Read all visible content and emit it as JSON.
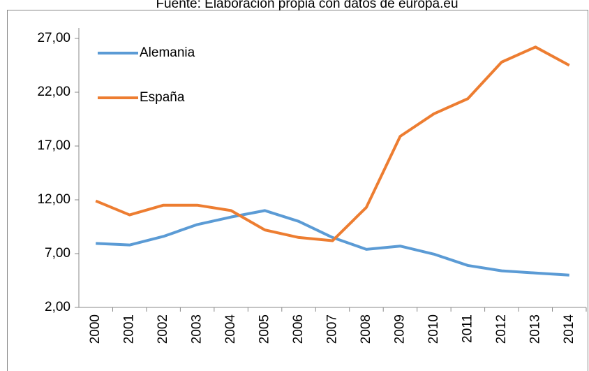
{
  "chart_data": {
    "type": "line",
    "title": "Fuente: Elaboración propia con datos de europa.eu",
    "categories": [
      "2000",
      "2001",
      "2002",
      "2003",
      "2004",
      "2005",
      "2006",
      "2007",
      "2008",
      "2009",
      "2010",
      "2011",
      "2012",
      "2013",
      "2014"
    ],
    "series": [
      {
        "name": "Alemania",
        "color": "#5b9bd5",
        "values": [
          7.95,
          7.8,
          8.6,
          9.7,
          10.4,
          11.0,
          10.0,
          8.5,
          7.4,
          7.7,
          6.95,
          5.9,
          5.4,
          5.2,
          5.0
        ]
      },
      {
        "name": "España",
        "color": "#ed7d31",
        "values": [
          11.9,
          10.6,
          11.5,
          11.5,
          11.0,
          9.2,
          8.5,
          8.2,
          11.3,
          17.9,
          20.0,
          21.4,
          24.8,
          26.2,
          24.5
        ]
      }
    ],
    "ylim": [
      2,
      27
    ],
    "yticks": [
      {
        "value": 2,
        "label": "2,00"
      },
      {
        "value": 7,
        "label": "7,00"
      },
      {
        "value": 12,
        "label": "12,00"
      },
      {
        "value": 17,
        "label": "17,00"
      },
      {
        "value": 22,
        "label": "22,00"
      },
      {
        "value": 27,
        "label": "27,00"
      }
    ],
    "legend": "top-left"
  }
}
